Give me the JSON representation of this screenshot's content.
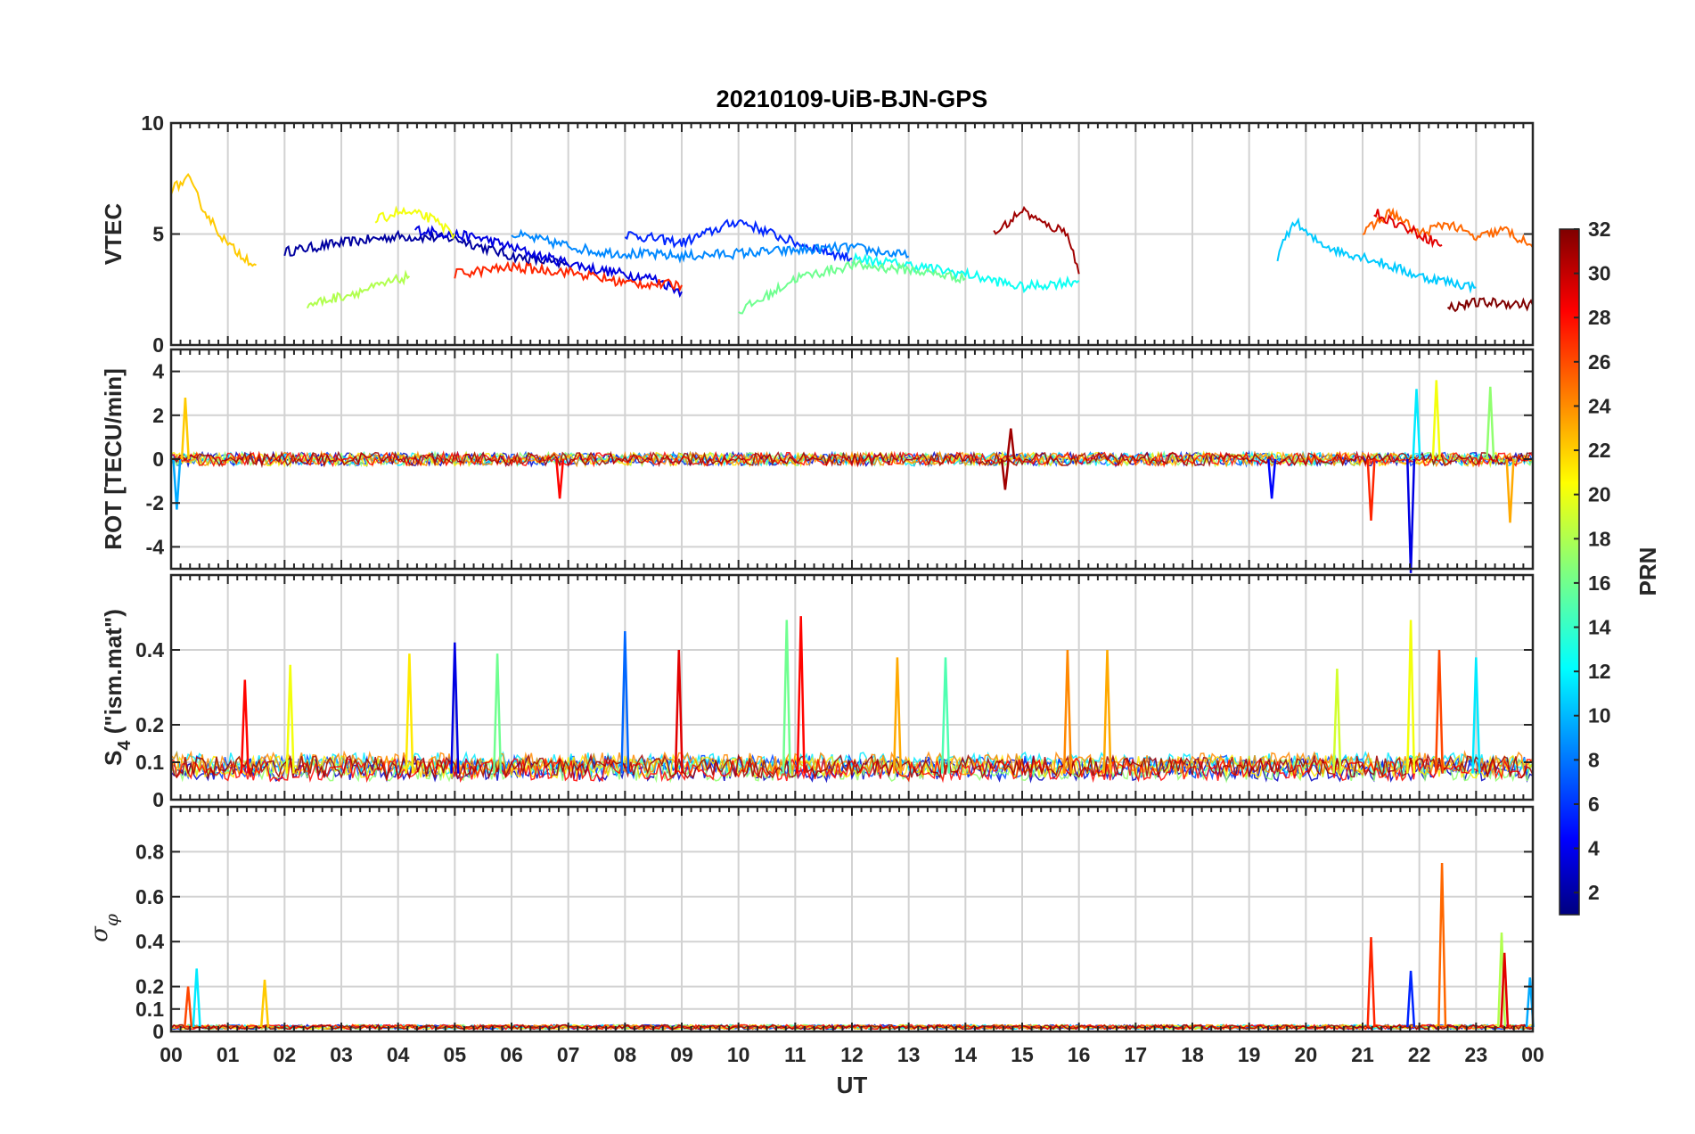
{
  "title": "20210109-UiB-BJN-GPS",
  "chart_data": {
    "type": "line",
    "title": "20210109-UiB-BJN-GPS",
    "xlabel": "UT",
    "x_tick_labels": [
      "00",
      "01",
      "02",
      "03",
      "04",
      "05",
      "06",
      "07",
      "08",
      "09",
      "10",
      "11",
      "12",
      "13",
      "14",
      "15",
      "16",
      "17",
      "18",
      "19",
      "20",
      "21",
      "22",
      "23",
      "00"
    ],
    "xlim": [
      0,
      24
    ],
    "grid": true,
    "colormap": "jet",
    "colorbar": {
      "label": "PRN",
      "range": [
        1,
        32
      ],
      "tick_labels": [
        "2",
        "4",
        "6",
        "8",
        "10",
        "12",
        "14",
        "16",
        "18",
        "20",
        "22",
        "24",
        "26",
        "28",
        "30",
        "32"
      ]
    },
    "panels": [
      {
        "ylabel": "VTEC",
        "ylim": [
          0,
          10
        ],
        "yticks": [
          0,
          5,
          10
        ],
        "ytick_labels": [
          "0",
          "5",
          "10"
        ],
        "series": [
          {
            "prn": 2,
            "x": [
              2.0,
              3.0,
              4.0,
              5.0,
              6.0,
              7.0
            ],
            "y": [
              4.2,
              4.6,
              4.9,
              4.8,
              4.0,
              3.6
            ]
          },
          {
            "prn": 4,
            "x": [
              4.3,
              5.5,
              6.5,
              7.5,
              8.5,
              9.0
            ],
            "y": [
              5.2,
              4.8,
              4.0,
              3.4,
              3.0,
              2.4
            ]
          },
          {
            "prn": 6,
            "x": [
              8.0,
              9.0,
              10.0,
              11.0,
              12.0
            ],
            "y": [
              5.0,
              4.6,
              5.6,
              4.6,
              3.9
            ]
          },
          {
            "prn": 9,
            "x": [
              6.0,
              7.5,
              9.0,
              10.5,
              12.0,
              13.0
            ],
            "y": [
              5.0,
              4.2,
              4.0,
              4.2,
              4.4,
              4.0
            ]
          },
          {
            "prn": 11,
            "x": [
              19.5,
              19.8,
              20.1,
              20.6,
              21.0,
              22.0,
              23.0
            ],
            "y": [
              4.0,
              5.6,
              4.8,
              4.2,
              4.0,
              3.1,
              2.6
            ]
          },
          {
            "prn": 13,
            "x": [
              12.0,
              13.0,
              14.0,
              15.0,
              16.0
            ],
            "y": [
              3.9,
              3.6,
              3.2,
              2.6,
              2.9
            ]
          },
          {
            "prn": 16,
            "x": [
              10.0,
              10.5,
              11.0,
              12.0,
              13.0,
              14.0
            ],
            "y": [
              1.5,
              2.2,
              3.0,
              3.6,
              3.4,
              3.0
            ]
          },
          {
            "prn": 18,
            "x": [
              2.4,
              3.0,
              3.6,
              4.2
            ],
            "y": [
              1.8,
              2.2,
              2.6,
              3.1
            ]
          },
          {
            "prn": 20,
            "x": [
              3.6,
              4.0,
              4.5,
              5.0
            ],
            "y": [
              5.6,
              6.0,
              5.8,
              5.0
            ]
          },
          {
            "prn": 22,
            "x": [
              0.0,
              0.3,
              0.6,
              1.0,
              1.5
            ],
            "y": [
              7.0,
              7.5,
              6.0,
              4.5,
              3.6
            ]
          },
          {
            "prn": 25,
            "x": [
              21.0,
              21.5,
              22.0,
              22.5,
              23.0,
              23.5,
              24.0
            ],
            "y": [
              5.0,
              6.0,
              5.0,
              5.5,
              4.8,
              5.2,
              4.4
            ]
          },
          {
            "prn": 27,
            "x": [
              5.0,
              6.0,
              7.0,
              8.0,
              9.0
            ],
            "y": [
              3.2,
              3.5,
              3.3,
              2.8,
              2.7
            ]
          },
          {
            "prn": 29,
            "x": [
              21.2,
              21.5,
              22.0,
              22.4
            ],
            "y": [
              6.0,
              5.6,
              5.0,
              4.5
            ]
          },
          {
            "prn": 31,
            "x": [
              14.5,
              14.8,
              15.0,
              15.4,
              15.8,
              16.0
            ],
            "y": [
              5.0,
              5.6,
              6.1,
              5.4,
              5.1,
              3.2
            ]
          },
          {
            "prn": 32,
            "x": [
              22.5,
              23.0,
              23.5,
              24.0
            ],
            "y": [
              1.7,
              1.9,
              1.9,
              1.8
            ]
          }
        ]
      },
      {
        "ylabel": "ROT [TECU/min]",
        "ylim": [
          -5,
          5
        ],
        "yticks": [
          -4,
          -2,
          0,
          2,
          4
        ],
        "ytick_labels": [
          "-4",
          "-2",
          "0",
          "2",
          "4"
        ],
        "spikes": [
          {
            "prn": 22,
            "x": 0.25,
            "y": 2.8
          },
          {
            "prn": 10,
            "x": 0.1,
            "y": -2.3
          },
          {
            "prn": 28,
            "x": 6.85,
            "y": -1.8
          },
          {
            "prn": 31,
            "x": 14.8,
            "y": 1.4
          },
          {
            "prn": 31,
            "x": 14.7,
            "y": -1.4
          },
          {
            "prn": 5,
            "x": 19.4,
            "y": -1.8
          },
          {
            "prn": 27,
            "x": 21.15,
            "y": -2.8
          },
          {
            "prn": 4,
            "x": 21.85,
            "y": -5.2
          },
          {
            "prn": 12,
            "x": 21.95,
            "y": 3.2
          },
          {
            "prn": 20,
            "x": 22.3,
            "y": 3.6
          },
          {
            "prn": 17,
            "x": 23.25,
            "y": 3.3
          },
          {
            "prn": 23,
            "x": 23.6,
            "y": -2.9
          }
        ]
      },
      {
        "ylabel": "S4 (\"ism.mat\")",
        "ylim": [
          0,
          0.6
        ],
        "yticks": [
          0,
          0.1,
          0.2,
          0.4
        ],
        "ytick_labels": [
          "0",
          "0.1",
          "0.2",
          "0.4"
        ],
        "spikes": [
          {
            "prn": 28,
            "x": 1.3,
            "y": 0.32
          },
          {
            "prn": 20,
            "x": 2.1,
            "y": 0.36
          },
          {
            "prn": 21,
            "x": 4.2,
            "y": 0.39
          },
          {
            "prn": 4,
            "x": 5.0,
            "y": 0.42
          },
          {
            "prn": 16,
            "x": 5.75,
            "y": 0.39
          },
          {
            "prn": 8,
            "x": 8.0,
            "y": 0.45
          },
          {
            "prn": 29,
            "x": 8.95,
            "y": 0.4
          },
          {
            "prn": 16,
            "x": 10.85,
            "y": 0.48
          },
          {
            "prn": 28,
            "x": 11.1,
            "y": 0.49
          },
          {
            "prn": 23,
            "x": 12.8,
            "y": 0.38
          },
          {
            "prn": 15,
            "x": 13.65,
            "y": 0.38
          },
          {
            "prn": 24,
            "x": 15.8,
            "y": 0.4
          },
          {
            "prn": 23,
            "x": 16.5,
            "y": 0.4
          },
          {
            "prn": 19,
            "x": 20.55,
            "y": 0.35
          },
          {
            "prn": 20,
            "x": 21.85,
            "y": 0.48
          },
          {
            "prn": 26,
            "x": 22.35,
            "y": 0.4
          },
          {
            "prn": 12,
            "x": 23.0,
            "y": 0.38
          }
        ]
      },
      {
        "ylabel": "σφ",
        "ylim": [
          0,
          1.0
        ],
        "yticks": [
          0,
          0.1,
          0.2,
          0.4,
          0.6,
          0.8
        ],
        "ytick_labels": [
          "0",
          "0.1",
          "0.2",
          "0.4",
          "0.6",
          "0.8"
        ],
        "spikes": [
          {
            "prn": 12,
            "x": 0.45,
            "y": 0.28
          },
          {
            "prn": 26,
            "x": 0.3,
            "y": 0.2
          },
          {
            "prn": 22,
            "x": 1.65,
            "y": 0.23
          },
          {
            "prn": 27,
            "x": 21.15,
            "y": 0.42
          },
          {
            "prn": 6,
            "x": 21.85,
            "y": 0.27
          },
          {
            "prn": 25,
            "x": 22.4,
            "y": 0.75
          },
          {
            "prn": 18,
            "x": 23.45,
            "y": 0.44
          },
          {
            "prn": 29,
            "x": 23.5,
            "y": 0.35
          },
          {
            "prn": 10,
            "x": 23.95,
            "y": 0.24
          }
        ]
      }
    ]
  }
}
